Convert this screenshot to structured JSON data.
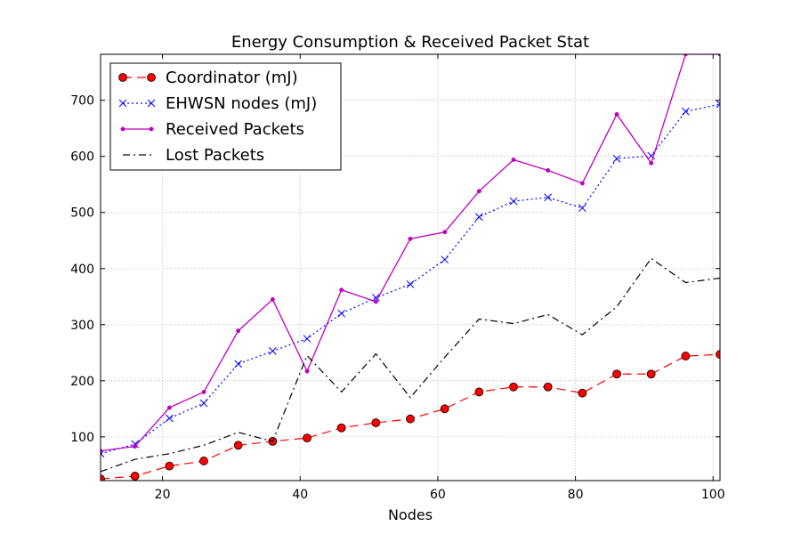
{
  "chart_data": {
    "type": "line",
    "title": "Energy Consumption & Received Packet Stat",
    "xlabel": "Nodes",
    "ylabel": "",
    "xlim": [
      11,
      101
    ],
    "ylim": [
      22,
      782
    ],
    "xticks": [
      20,
      40,
      60,
      80,
      100
    ],
    "yticks": [
      100,
      200,
      300,
      400,
      500,
      600,
      700
    ],
    "grid": true,
    "legend_position": "top-left",
    "x": [
      11,
      16,
      21,
      26,
      31,
      36,
      41,
      46,
      51,
      56,
      61,
      66,
      71,
      76,
      81,
      86,
      91,
      96,
      101
    ],
    "series": [
      {
        "name": "Coordinator (mJ)",
        "color": "#ff0000",
        "style": "dashed-circle",
        "values": [
          25,
          30,
          48,
          57,
          85,
          92,
          98,
          116,
          125,
          132,
          150,
          180,
          189,
          189,
          178,
          212,
          212,
          244,
          247
        ]
      },
      {
        "name": "EHWSN nodes (mJ)",
        "color": "#0000ff",
        "style": "dotted-x",
        "values": [
          70,
          87,
          133,
          160,
          230,
          253,
          275,
          320,
          348,
          372,
          416,
          492,
          520,
          527,
          508,
          596,
          601,
          680,
          693
        ]
      },
      {
        "name": "Received Packets",
        "color": "#bf00bf",
        "style": "solid-dot",
        "values": [
          75,
          83,
          152,
          180,
          289,
          345,
          217,
          362,
          341,
          453,
          465,
          538,
          594,
          575,
          552,
          675,
          588,
          782,
          782
        ]
      },
      {
        "name": "Lost Packets",
        "color": "#000000",
        "style": "dashdot",
        "values": [
          38,
          60,
          70,
          85,
          108,
          92,
          245,
          180,
          248,
          170,
          242,
          310,
          302,
          318,
          282,
          332,
          418,
          375,
          383
        ]
      }
    ]
  }
}
